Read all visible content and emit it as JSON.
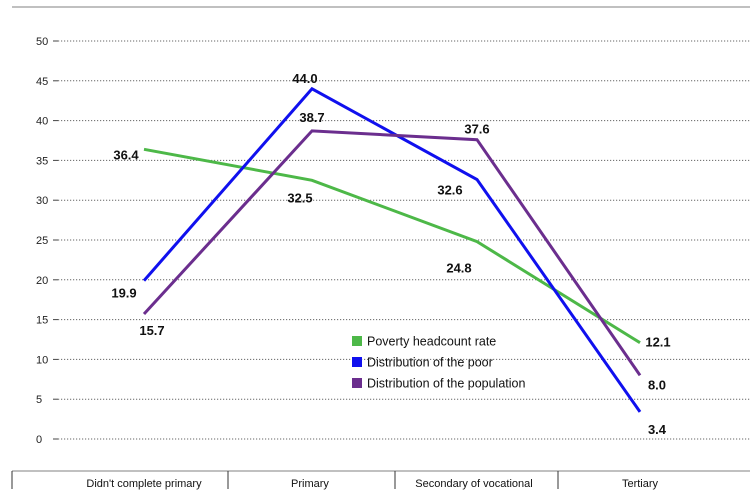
{
  "chart_data": {
    "type": "line",
    "categories": [
      "Didn't complete primary",
      "Primary",
      "Secondary of vocational",
      "Tertiary"
    ],
    "ylim": [
      0,
      50
    ],
    "yticks": [
      0,
      5,
      10,
      15,
      20,
      25,
      30,
      35,
      40,
      45,
      50
    ],
    "grid": "horizontal dotted",
    "legend_position": "center-right",
    "series": [
      {
        "name": "Poverty headcount rate",
        "color": "#4db848",
        "values": [
          36.4,
          32.5,
          24.8,
          12.1
        ]
      },
      {
        "name": "Distribution of the poor",
        "color": "#1010ee",
        "values": [
          19.9,
          44.0,
          32.6,
          3.4
        ]
      },
      {
        "name": "Distribution of the population",
        "color": "#6b2e8e",
        "values": [
          15.7,
          38.7,
          37.6,
          8.0
        ]
      }
    ]
  }
}
